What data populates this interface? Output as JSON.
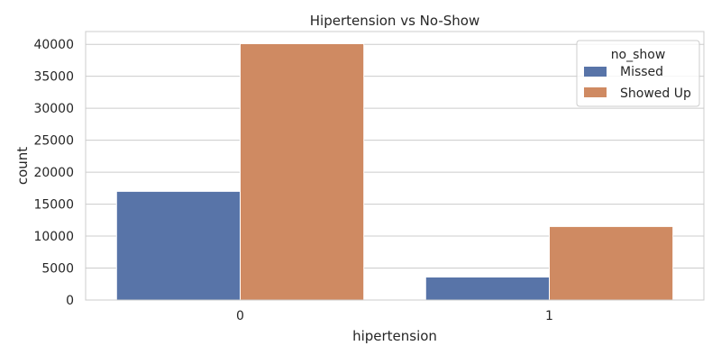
{
  "chart_data": {
    "type": "bar",
    "title": "Hipertension vs No-Show",
    "xlabel": "hipertension",
    "ylabel": "count",
    "categories": [
      "0",
      "1"
    ],
    "series": [
      {
        "name": "Missed",
        "color": "#5874a8",
        "values": [
          17000,
          3600
        ]
      },
      {
        "name": "Showed Up",
        "color": "#cf8a62",
        "values": [
          40100,
          11500
        ]
      }
    ],
    "ylim": [
      0,
      42000
    ],
    "yticks": [
      0,
      5000,
      10000,
      15000,
      20000,
      25000,
      30000,
      35000,
      40000
    ],
    "grid": true,
    "legend": {
      "title": "no_show",
      "placement": "top-right"
    }
  }
}
